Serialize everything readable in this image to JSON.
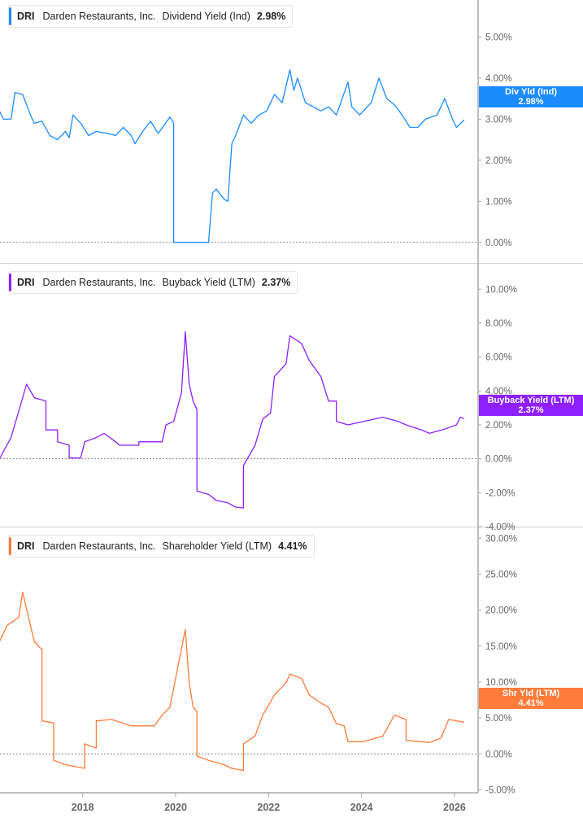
{
  "chart_data": [
    {
      "type": "line",
      "ticker": "DRI",
      "company": "Darden Restaurants, Inc.",
      "metric": "Dividend Yield (Ind)",
      "current": "2.98%",
      "badge_label": "Div Yld (Ind)",
      "color": "#1a8cff",
      "ylim": [
        -0.5,
        5.9
      ],
      "yticks": [
        "0.00%",
        "1.00%",
        "2.00%",
        "3.00%",
        "4.00%",
        "5.00%"
      ],
      "ytick_values": [
        0,
        1,
        2,
        3,
        4,
        5
      ],
      "points": [
        [
          "2016-03",
          3.2
        ],
        [
          "2016-04",
          3.0
        ],
        [
          "2016-06",
          3.0
        ],
        [
          "2016-07",
          3.65
        ],
        [
          "2016-09",
          3.6
        ],
        [
          "2016-11",
          3.1
        ],
        [
          "2016-12",
          2.9
        ],
        [
          "2017-02",
          2.95
        ],
        [
          "2017-04",
          2.6
        ],
        [
          "2017-06",
          2.5
        ],
        [
          "2017-08",
          2.7
        ],
        [
          "2017-09",
          2.55
        ],
        [
          "2017-10",
          3.1
        ],
        [
          "2017-12",
          2.9
        ],
        [
          "2018-02",
          2.6
        ],
        [
          "2018-04",
          2.7
        ],
        [
          "2018-07",
          2.65
        ],
        [
          "2018-09",
          2.6
        ],
        [
          "2018-11",
          2.8
        ],
        [
          "2019-01",
          2.6
        ],
        [
          "2019-02",
          2.4
        ],
        [
          "2019-04",
          2.7
        ],
        [
          "2019-06",
          2.95
        ],
        [
          "2019-08",
          2.65
        ],
        [
          "2019-11",
          3.05
        ],
        [
          "2019-12",
          2.9
        ],
        [
          "2019-12",
          0
        ],
        [
          "2020-09",
          0
        ],
        [
          "2020-10",
          1.2
        ],
        [
          "2020-11",
          1.3
        ],
        [
          "2021-01",
          1.05
        ],
        [
          "2021-02",
          1.0
        ],
        [
          "2021-03",
          2.4
        ],
        [
          "2021-04",
          2.6
        ],
        [
          "2021-06",
          3.1
        ],
        [
          "2021-08",
          2.9
        ],
        [
          "2021-10",
          3.1
        ],
        [
          "2021-12",
          3.2
        ],
        [
          "2022-02",
          3.6
        ],
        [
          "2022-04",
          3.4
        ],
        [
          "2022-06",
          4.2
        ],
        [
          "2022-07",
          3.7
        ],
        [
          "2022-08",
          4.0
        ],
        [
          "2022-10",
          3.4
        ],
        [
          "2022-12",
          3.3
        ],
        [
          "2023-02",
          3.2
        ],
        [
          "2023-04",
          3.3
        ],
        [
          "2023-06",
          3.1
        ],
        [
          "2023-09",
          3.9
        ],
        [
          "2023-10",
          3.3
        ],
        [
          "2023-12",
          3.1
        ],
        [
          "2024-03",
          3.4
        ],
        [
          "2024-05",
          4.0
        ],
        [
          "2024-07",
          3.5
        ],
        [
          "2024-09",
          3.35
        ],
        [
          "2024-11",
          3.1
        ],
        [
          "2025-01",
          2.8
        ],
        [
          "2025-03",
          2.8
        ],
        [
          "2025-05",
          3.0
        ],
        [
          "2025-08",
          3.1
        ],
        [
          "2025-10",
          3.5
        ],
        [
          "2025-12",
          3.0
        ],
        [
          "2026-01",
          2.8
        ],
        [
          "2026-03",
          2.98
        ]
      ]
    },
    {
      "type": "line",
      "ticker": "DRI",
      "company": "Darden Restaurants, Inc.",
      "metric": "Buyback Yield (LTM)",
      "current": "2.37%",
      "badge_label": "Buyback Yield (LTM)",
      "color": "#8f1fff",
      "ylim": [
        -4.0,
        11.5
      ],
      "yticks": [
        "-4.00%",
        "-2.00%",
        "0.00%",
        "2.00%",
        "4.00%",
        "6.00%",
        "8.00%",
        "10.00%"
      ],
      "ytick_values": [
        -4,
        -2,
        0,
        2,
        4,
        6,
        8,
        10
      ],
      "points": [
        [
          "2016-03",
          -1.9
        ],
        [
          "2016-03",
          0
        ],
        [
          "2016-06",
          1.25
        ],
        [
          "2016-10",
          4.4
        ],
        [
          "2016-12",
          3.6
        ],
        [
          "2017-03",
          3.4
        ],
        [
          "2017-03",
          1.7
        ],
        [
          "2017-06",
          1.7
        ],
        [
          "2017-06",
          1.0
        ],
        [
          "2017-09",
          0.8
        ],
        [
          "2017-09",
          0.05
        ],
        [
          "2017-12",
          0.05
        ],
        [
          "2018-01",
          1.0
        ],
        [
          "2018-04",
          1.25
        ],
        [
          "2018-06",
          1.5
        ],
        [
          "2018-09",
          1.0
        ],
        [
          "2018-10",
          0.8
        ],
        [
          "2019-03",
          0.8
        ],
        [
          "2019-03",
          1.0
        ],
        [
          "2019-09",
          1.0
        ],
        [
          "2019-10",
          2.0
        ],
        [
          "2019-12",
          2.2
        ],
        [
          "2020-02",
          3.9
        ],
        [
          "2020-03",
          7.5
        ],
        [
          "2020-04",
          4.4
        ],
        [
          "2020-05",
          3.4
        ],
        [
          "2020-06",
          2.9
        ],
        [
          "2020-06",
          -1.9
        ],
        [
          "2020-09",
          -2.1
        ],
        [
          "2020-11",
          -2.45
        ],
        [
          "2021-02",
          -2.6
        ],
        [
          "2021-04",
          -2.85
        ],
        [
          "2021-06",
          -2.9
        ],
        [
          "2021-06",
          -0.4
        ],
        [
          "2021-09",
          0.8
        ],
        [
          "2021-11",
          2.35
        ],
        [
          "2022-01",
          2.7
        ],
        [
          "2022-02",
          4.85
        ],
        [
          "2022-05",
          5.6
        ],
        [
          "2022-06",
          7.25
        ],
        [
          "2022-09",
          6.8
        ],
        [
          "2022-11",
          5.8
        ],
        [
          "2023-02",
          4.85
        ],
        [
          "2023-04",
          3.4
        ],
        [
          "2023-06",
          3.4
        ],
        [
          "2023-06",
          2.2
        ],
        [
          "2023-09",
          2.0
        ],
        [
          "2024-06",
          2.45
        ],
        [
          "2024-10",
          2.2
        ],
        [
          "2024-12",
          2.0
        ],
        [
          "2025-04",
          1.7
        ],
        [
          "2025-06",
          1.5
        ],
        [
          "2025-10",
          1.75
        ],
        [
          "2026-01",
          2.0
        ],
        [
          "2026-02",
          2.45
        ],
        [
          "2026-03",
          2.37
        ]
      ]
    },
    {
      "type": "line",
      "ticker": "DRI",
      "company": "Darden Restaurants, Inc.",
      "metric": "Shareholder Yield (LTM)",
      "current": "4.41%",
      "badge_label": "Shr Yld (LTM)",
      "color": "#ff7b3a",
      "ylim": [
        -5.4,
        31.5
      ],
      "yticks": [
        "-5.00%",
        "0.00%",
        "5.00%",
        "10.00%",
        "15.00%",
        "20.00%",
        "25.00%",
        "30.00%"
      ],
      "ytick_values": [
        -5,
        0,
        5,
        10,
        15,
        20,
        25,
        30
      ],
      "points": [
        [
          "2016-03",
          4.8
        ],
        [
          "2016-03",
          15.6
        ],
        [
          "2016-05",
          17.9
        ],
        [
          "2016-08",
          19
        ],
        [
          "2016-09",
          22.5
        ],
        [
          "2016-11",
          17.9
        ],
        [
          "2016-12",
          15.6
        ],
        [
          "2017-02",
          14.5
        ],
        [
          "2017-02",
          4.6
        ],
        [
          "2017-05",
          4.3
        ],
        [
          "2017-05",
          -0.9
        ],
        [
          "2017-08",
          -1.5
        ],
        [
          "2018-01",
          -2
        ],
        [
          "2018-01",
          1.4
        ],
        [
          "2018-04",
          0.8
        ],
        [
          "2018-04",
          4.6
        ],
        [
          "2018-08",
          4.8
        ],
        [
          "2019-01",
          3.9
        ],
        [
          "2019-07",
          3.9
        ],
        [
          "2019-09",
          5.4
        ],
        [
          "2019-11",
          6.5
        ],
        [
          "2020-03",
          17.3
        ],
        [
          "2020-04",
          9.9
        ],
        [
          "2020-05",
          6.5
        ],
        [
          "2020-06",
          5.9
        ],
        [
          "2020-06",
          -0.3
        ],
        [
          "2020-09",
          -0.9
        ],
        [
          "2021-01",
          -1.5
        ],
        [
          "2021-03",
          -2
        ],
        [
          "2021-06",
          -2.3
        ],
        [
          "2021-06",
          1.4
        ],
        [
          "2021-09",
          2.5
        ],
        [
          "2021-11",
          5.4
        ],
        [
          "2022-02",
          8.2
        ],
        [
          "2022-05",
          9.9
        ],
        [
          "2022-06",
          11.1
        ],
        [
          "2022-09",
          10.5
        ],
        [
          "2022-11",
          8.2
        ],
        [
          "2023-02",
          7.1
        ],
        [
          "2023-04",
          6.5
        ],
        [
          "2023-06",
          4.2
        ],
        [
          "2023-08",
          3.9
        ],
        [
          "2023-09",
          1.7
        ],
        [
          "2024-01",
          1.7
        ],
        [
          "2024-06",
          2.5
        ],
        [
          "2024-09",
          5.4
        ],
        [
          "2024-12",
          4.8
        ],
        [
          "2024-12",
          1.9
        ],
        [
          "2025-06",
          1.6
        ],
        [
          "2025-09",
          2.2
        ],
        [
          "2025-11",
          4.8
        ],
        [
          "2026-03",
          4.41
        ]
      ]
    }
  ],
  "x_axis": {
    "ticks": [
      "2018",
      "2020",
      "2022",
      "2024",
      "2026"
    ]
  }
}
